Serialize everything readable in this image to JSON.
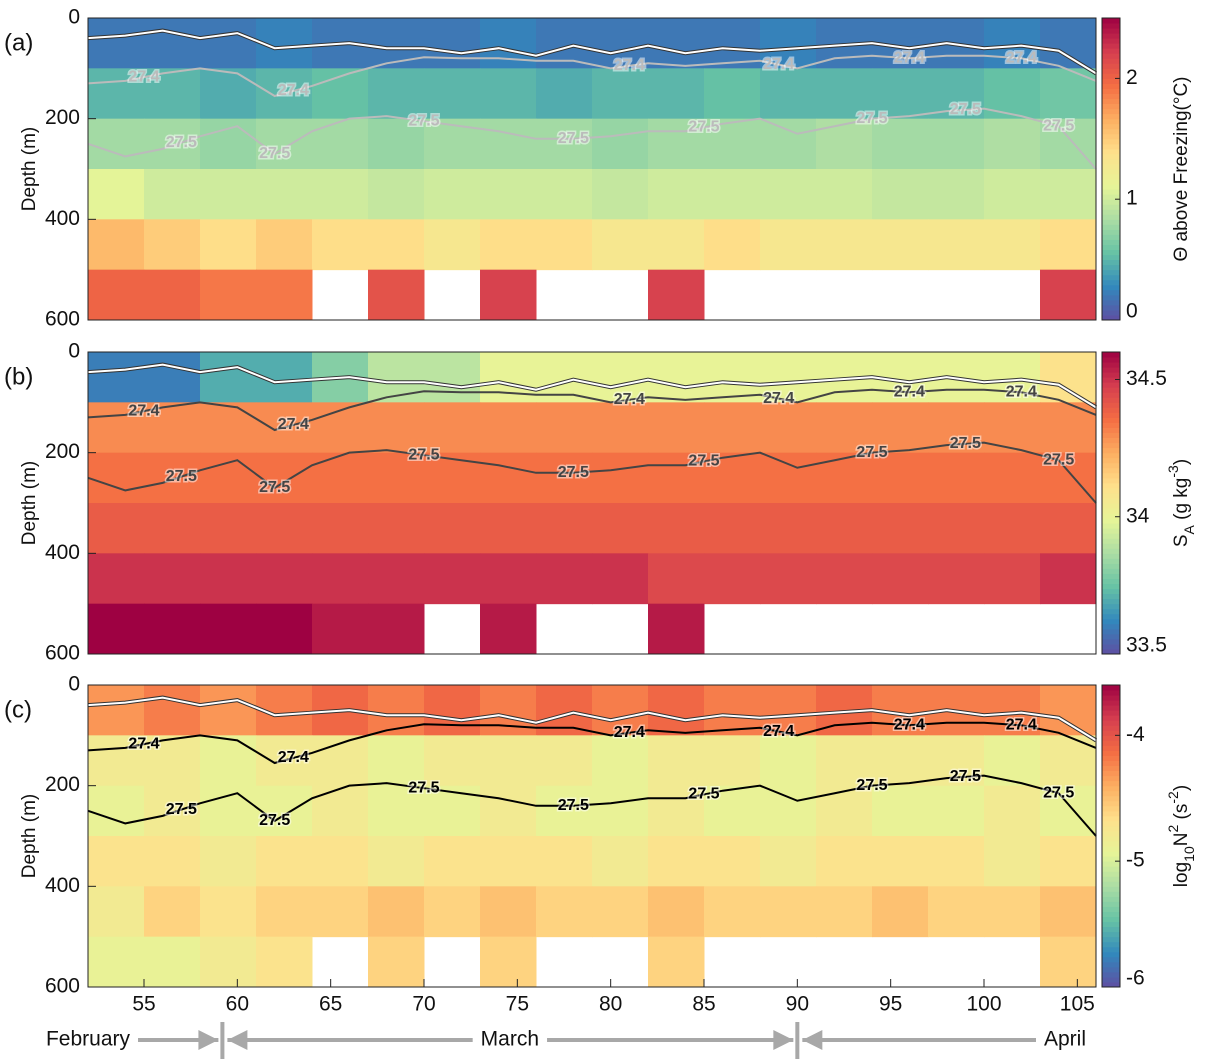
{
  "chart_data": [
    {
      "type": "heatmap",
      "panel_label": "(a)",
      "ylabel": "Depth (m)",
      "colorbar_label": [
        {
          "text": "Θ above Freezing(°C)"
        }
      ],
      "xlim": [
        52,
        106
      ],
      "ylim": [
        0,
        600
      ],
      "yticks": [
        0,
        200,
        400,
        600
      ],
      "clim": [
        0,
        2.5
      ],
      "cticks": [
        0,
        1,
        2
      ],
      "contour_color": "#bbbbbb",
      "time_edges": [
        52,
        55,
        58,
        61,
        64,
        67,
        70,
        73,
        76,
        79,
        82,
        85,
        88,
        91,
        94,
        97,
        100,
        103,
        106
      ],
      "depth_edges": [
        0,
        100,
        200,
        300,
        400,
        500,
        600
      ],
      "values": [
        [
          0.2,
          0.2,
          0.2,
          0.25,
          0.2,
          0.2,
          0.2,
          0.25,
          0.2,
          0.2,
          0.2,
          0.2,
          0.25,
          0.2,
          0.2,
          0.2,
          0.25,
          0.2
        ],
        [
          0.5,
          0.5,
          0.45,
          0.5,
          0.55,
          0.5,
          0.5,
          0.5,
          0.45,
          0.5,
          0.5,
          0.55,
          0.5,
          0.5,
          0.5,
          0.5,
          0.55,
          0.6
        ],
        [
          0.8,
          0.8,
          0.75,
          0.8,
          0.8,
          0.75,
          0.8,
          0.8,
          0.8,
          0.75,
          0.8,
          0.8,
          0.8,
          0.85,
          0.8,
          0.8,
          0.85,
          0.8
        ],
        [
          1.1,
          1.0,
          1.0,
          1.0,
          1.0,
          0.95,
          1.0,
          1.0,
          1.0,
          0.95,
          1.0,
          1.0,
          1.0,
          1.0,
          0.95,
          0.95,
          1.0,
          1.0
        ],
        [
          1.6,
          1.5,
          1.4,
          1.5,
          1.4,
          1.4,
          1.3,
          1.4,
          1.4,
          1.3,
          1.3,
          1.4,
          1.3,
          1.3,
          1.3,
          1.3,
          1.3,
          1.4
        ],
        [
          2.0,
          2.0,
          1.9,
          1.9,
          null,
          2.1,
          null,
          2.2,
          null,
          null,
          2.2,
          null,
          null,
          null,
          null,
          null,
          null,
          2.2
        ]
      ]
    },
    {
      "type": "heatmap",
      "panel_label": "(b)",
      "ylabel": "Depth (m)",
      "colorbar_label": [
        {
          "text": "S"
        },
        {
          "text": "A",
          "sub": true
        },
        {
          "text": " (g kg"
        },
        {
          "text": "-3",
          "sup": true
        },
        {
          "text": ")"
        }
      ],
      "xlim": [
        52,
        106
      ],
      "ylim": [
        0,
        600
      ],
      "yticks": [
        0,
        200,
        400,
        600
      ],
      "clim": [
        33.5,
        34.6
      ],
      "cticks": [
        33.5,
        34,
        34.5
      ],
      "contour_color": "#444444",
      "time_edges": [
        52,
        55,
        58,
        61,
        64,
        67,
        70,
        73,
        76,
        79,
        82,
        85,
        88,
        91,
        94,
        97,
        100,
        103,
        106
      ],
      "depth_edges": [
        0,
        100,
        200,
        300,
        400,
        500,
        600
      ],
      "values": [
        [
          33.6,
          33.6,
          33.7,
          33.7,
          33.8,
          33.9,
          33.9,
          34.0,
          34.0,
          34.0,
          34.0,
          34.0,
          34.0,
          34.0,
          34.0,
          34.0,
          34.0,
          34.1
        ],
        [
          34.3,
          34.3,
          34.3,
          34.3,
          34.3,
          34.3,
          34.3,
          34.3,
          34.3,
          34.3,
          34.3,
          34.3,
          34.3,
          34.3,
          34.3,
          34.3,
          34.3,
          34.3
        ],
        [
          34.35,
          34.35,
          34.35,
          34.35,
          34.35,
          34.35,
          34.35,
          34.35,
          34.35,
          34.35,
          34.35,
          34.35,
          34.35,
          34.35,
          34.35,
          34.35,
          34.35,
          34.35
        ],
        [
          34.4,
          34.4,
          34.4,
          34.4,
          34.4,
          34.4,
          34.4,
          34.4,
          34.4,
          34.4,
          34.4,
          34.4,
          34.4,
          34.4,
          34.4,
          34.4,
          34.4,
          34.4
        ],
        [
          34.5,
          34.5,
          34.5,
          34.5,
          34.5,
          34.5,
          34.5,
          34.5,
          34.5,
          34.5,
          34.45,
          34.45,
          34.45,
          34.45,
          34.45,
          34.45,
          34.45,
          34.5
        ],
        [
          34.6,
          34.6,
          34.6,
          34.6,
          34.55,
          34.55,
          null,
          34.55,
          null,
          null,
          34.55,
          null,
          null,
          null,
          null,
          null,
          null,
          null
        ]
      ]
    },
    {
      "type": "heatmap",
      "panel_label": "(c)",
      "ylabel": "Depth (m)",
      "colorbar_label": [
        {
          "text": "log"
        },
        {
          "text": "10",
          "sub": true
        },
        {
          "text": "N"
        },
        {
          "text": "2",
          "sup": true
        },
        {
          "text": " (s"
        },
        {
          "text": "-2",
          "sup": true
        },
        {
          "text": ")"
        }
      ],
      "xlim": [
        52,
        106
      ],
      "ylim": [
        0,
        600
      ],
      "yticks": [
        0,
        200,
        400,
        600
      ],
      "xticks": [
        55,
        60,
        65,
        70,
        75,
        80,
        85,
        90,
        95,
        100,
        105
      ],
      "clim": [
        -6,
        -3.6
      ],
      "cticks": [
        -6,
        -5,
        -4
      ],
      "contour_color": "#000000",
      "time_edges": [
        52,
        55,
        58,
        61,
        64,
        67,
        70,
        73,
        76,
        79,
        82,
        85,
        88,
        91,
        94,
        97,
        100,
        103,
        106
      ],
      "depth_edges": [
        0,
        100,
        200,
        300,
        400,
        500,
        600
      ],
      "values": [
        [
          -4.3,
          -4.2,
          -4.3,
          -4.2,
          -4.1,
          -4.2,
          -4.1,
          -4.2,
          -4.1,
          -4.2,
          -4.1,
          -4.2,
          -4.2,
          -4.1,
          -4.2,
          -4.2,
          -4.2,
          -4.3
        ],
        [
          -4.8,
          -4.8,
          -4.9,
          -4.8,
          -4.8,
          -4.9,
          -4.8,
          -4.8,
          -4.8,
          -4.9,
          -4.8,
          -4.8,
          -4.9,
          -4.8,
          -4.8,
          -4.8,
          -4.9,
          -4.8
        ],
        [
          -4.9,
          -4.8,
          -4.9,
          -4.9,
          -4.8,
          -4.9,
          -4.9,
          -4.8,
          -4.9,
          -4.9,
          -4.8,
          -4.9,
          -4.9,
          -4.8,
          -4.9,
          -4.9,
          -4.8,
          -4.9
        ],
        [
          -4.7,
          -4.7,
          -4.8,
          -4.7,
          -4.7,
          -4.8,
          -4.7,
          -4.7,
          -4.7,
          -4.8,
          -4.7,
          -4.7,
          -4.8,
          -4.7,
          -4.7,
          -4.7,
          -4.8,
          -4.7
        ],
        [
          -4.8,
          -4.6,
          -4.7,
          -4.6,
          -4.6,
          -4.5,
          -4.6,
          -4.5,
          -4.6,
          -4.6,
          -4.5,
          -4.6,
          -4.6,
          -4.6,
          -4.5,
          -4.6,
          -4.6,
          -4.5
        ],
        [
          -4.9,
          -4.9,
          -4.8,
          -4.7,
          null,
          -4.6,
          null,
          -4.6,
          null,
          null,
          -4.6,
          null,
          null,
          null,
          null,
          null,
          null,
          -4.6
        ]
      ]
    }
  ],
  "colormap": [
    "#5e4fa2",
    "#3288bd",
    "#66c2a5",
    "#abdda4",
    "#e6f598",
    "#fee08b",
    "#fdae61",
    "#f46d43",
    "#d53e4f",
    "#9e0142"
  ],
  "contours": [
    {
      "x": [
        52,
        54,
        56,
        58,
        60,
        62,
        64,
        66,
        68,
        70,
        72,
        74,
        76,
        78,
        80,
        82,
        84,
        86,
        88,
        90,
        92,
        94,
        96,
        98,
        100,
        102,
        104,
        106
      ],
      "depths": [
        40,
        35,
        25,
        40,
        30,
        60,
        55,
        50,
        60,
        60,
        70,
        60,
        75,
        55,
        70,
        55,
        70,
        60,
        65,
        60,
        55,
        50,
        60,
        50,
        60,
        55,
        65,
        110
      ],
      "halo": true
    },
    {
      "label": "27.4",
      "label_x": [
        55,
        63,
        81,
        89,
        96,
        102
      ],
      "x": [
        52,
        54,
        56,
        58,
        60,
        62,
        64,
        66,
        68,
        70,
        72,
        74,
        76,
        78,
        80,
        82,
        84,
        86,
        88,
        90,
        92,
        94,
        96,
        98,
        100,
        102,
        104,
        106
      ],
      "depths": [
        130,
        125,
        110,
        100,
        110,
        155,
        135,
        110,
        90,
        78,
        80,
        80,
        85,
        85,
        100,
        90,
        95,
        90,
        85,
        100,
        80,
        75,
        80,
        75,
        75,
        80,
        95,
        125
      ]
    },
    {
      "label": "27.5",
      "label_x": [
        57,
        62,
        70,
        78,
        85,
        94,
        99,
        104
      ],
      "x": [
        52,
        54,
        56,
        58,
        60,
        62,
        64,
        66,
        68,
        70,
        72,
        74,
        76,
        78,
        80,
        82,
        84,
        86,
        88,
        90,
        92,
        94,
        96,
        98,
        100,
        102,
        104,
        106
      ],
      "depths": [
        250,
        275,
        260,
        235,
        215,
        270,
        225,
        200,
        195,
        205,
        215,
        225,
        240,
        240,
        235,
        225,
        225,
        210,
        200,
        230,
        215,
        200,
        195,
        185,
        180,
        195,
        215,
        300
      ]
    }
  ],
  "months": [
    {
      "label": "February"
    },
    {
      "label": "March"
    },
    {
      "label": "April"
    }
  ],
  "month_boundaries": [
    59.2,
    90
  ]
}
